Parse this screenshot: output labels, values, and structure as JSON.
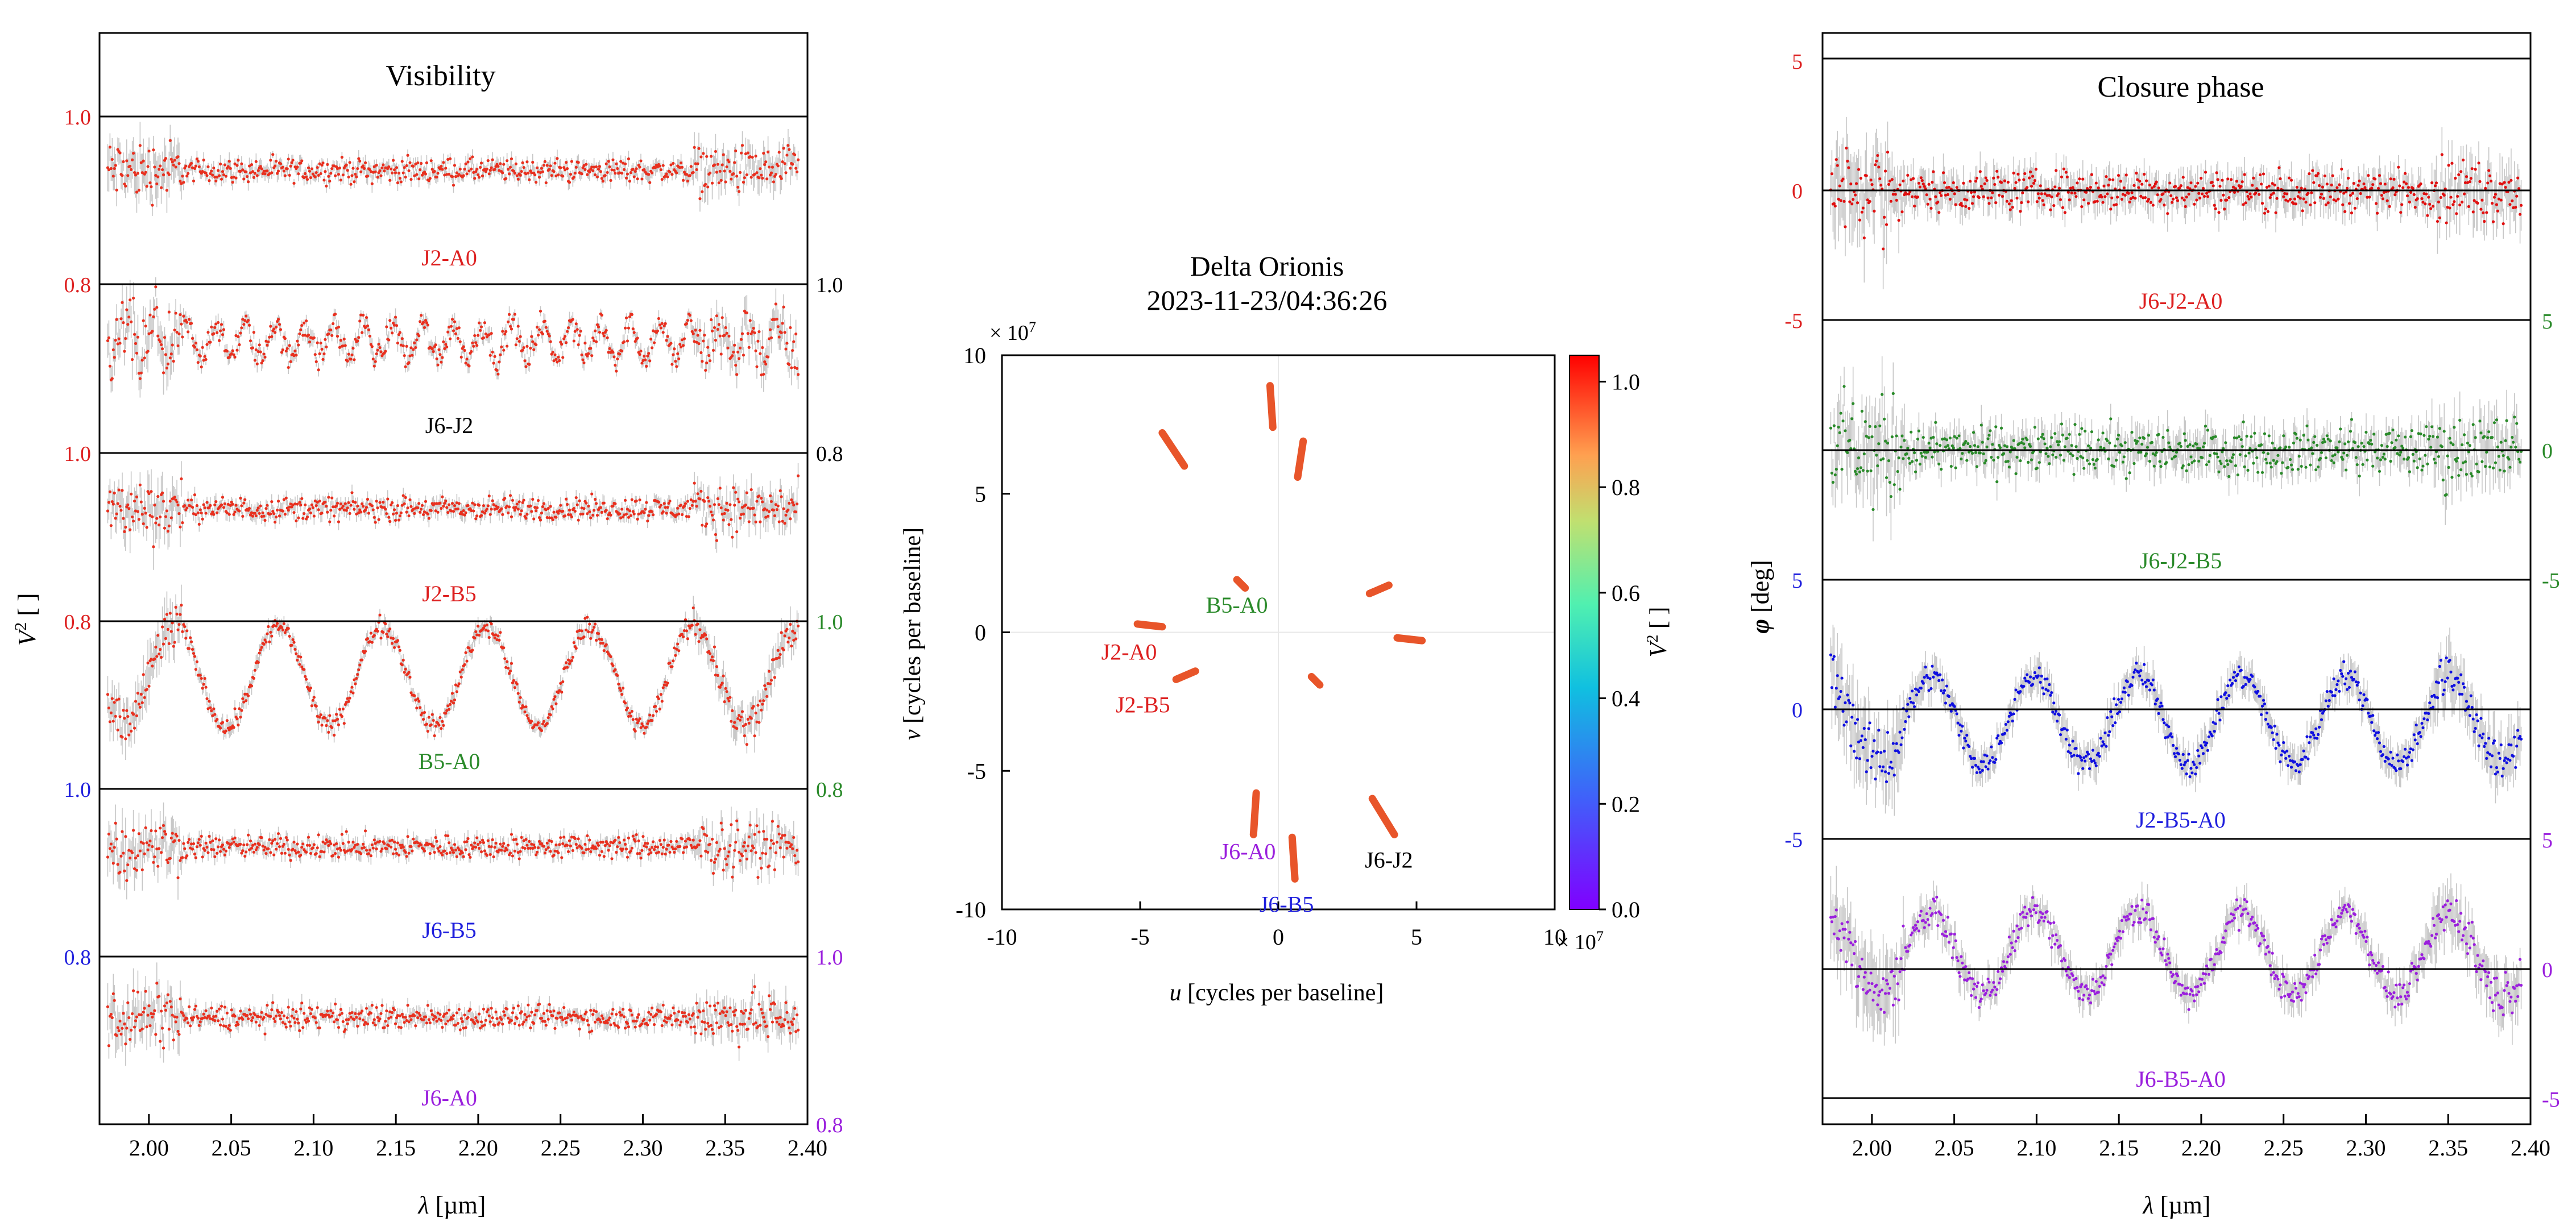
{
  "chart_data": [
    {
      "type": "scatter",
      "title": "Visibility",
      "xlabel_symbol": "λ",
      "xlabel_unit": "[µm]",
      "ylabel_symbol": "V",
      "ylabel_power": "2",
      "ylabel_unit": "[ ]",
      "xlim": [
        1.97,
        2.4
      ],
      "xticks": [
        "2.00",
        "2.05",
        "2.10",
        "2.15",
        "2.20",
        "2.25",
        "2.30",
        "2.35",
        "2.40"
      ],
      "xtick_values": [
        2.0,
        2.05,
        2.1,
        2.15,
        2.2,
        2.25,
        2.3,
        2.35,
        2.4
      ],
      "band_ylim": [
        0.8,
        1.0
      ],
      "panels": [
        {
          "name": "J2-A0",
          "color": "#dd1f1f",
          "ticks_left": [
            "1.0",
            "0.8"
          ],
          "ticks_right": [],
          "tick_color": "#dd1f1f",
          "right_color": "#000000",
          "mean": 0.94,
          "amp": 0.0,
          "period": 0.05,
          "noise": 0.012
        },
        {
          "name": "J6-J2",
          "color": "#000000",
          "ticks_left": [],
          "ticks_right": [
            "1.0",
            "0.8"
          ],
          "tick_color": "#dd1f1f",
          "right_color": "#000000",
          "mean": 0.92,
          "amp": 0.02,
          "period": 0.018,
          "noise": 0.014
        },
        {
          "name": "J2-B5",
          "color": "#dd1f1f",
          "ticks_left": [
            "1.0",
            "0.8"
          ],
          "ticks_right": [],
          "tick_color": "#dd1f1f",
          "right_color": "#000000",
          "mean": 0.93,
          "amp": 0.0,
          "period": 0.05,
          "noise": 0.012
        },
        {
          "name": "B5-A0",
          "color": "#2a8a2a",
          "ticks_left": [],
          "ticks_right": [
            "1.0",
            "0.8"
          ],
          "tick_color": "#dd1f1f",
          "right_color": "#2a8a2a",
          "mean": 0.88,
          "amp": 0.06,
          "period": 0.063,
          "noise": 0.01
        },
        {
          "name": "J6-B5",
          "color": "#1f1fdd",
          "ticks_left": [
            "1.0",
            "0.8"
          ],
          "ticks_right": [],
          "tick_color": "#1f1fdd",
          "right_color": "#2a8a2a",
          "mean": 0.86,
          "amp": 0.0,
          "period": 0.05,
          "noise": 0.012
        },
        {
          "name": "J6-A0",
          "color": "#9a1fdd",
          "ticks_left": [],
          "ticks_right": [
            "1.0",
            "0.8"
          ],
          "tick_color": "#1f1fdd",
          "right_color": "#9a1fdd",
          "mean": 0.88,
          "amp": 0.0,
          "period": 0.05,
          "noise": 0.012
        }
      ],
      "marker_color": "#e8301f"
    },
    {
      "type": "scatter",
      "title_line1": "Delta Orionis",
      "title_line2": "2023-11-23/04:36:26",
      "xlabel_symbol": "u",
      "xlabel_unit": "[cycles per baseline]",
      "ylabel_symbol": "v",
      "ylabel_unit": "[cycles per baseline]",
      "multiplier": "× 10",
      "multiplier_exp": "7",
      "xlim": [
        -10,
        10
      ],
      "ylim": [
        -10,
        10
      ],
      "xticks": [
        "-10",
        "-5",
        "0",
        "5",
        "10"
      ],
      "yticks": [
        "10",
        "5",
        "0",
        "-5",
        "-10"
      ],
      "tick_values_x": [
        -10,
        -5,
        0,
        5,
        10
      ],
      "tick_values_y": [
        10,
        5,
        0,
        -5,
        -10
      ],
      "colorbar_label_symbol": "V",
      "colorbar_label_power": "2",
      "colorbar_label_unit": "[ ]",
      "colorbar_ticks": [
        "1.0",
        "0.8",
        "0.6",
        "0.4",
        "0.2",
        "0.0"
      ],
      "colorbar_values": [
        1.0,
        0.8,
        0.6,
        0.4,
        0.2,
        0.0
      ],
      "colorbar_range": [
        0.0,
        1.05
      ],
      "baseline_labels": [
        {
          "name": "B5-A0",
          "color": "#2a8a2a",
          "u": -1.5,
          "v": 1.0
        },
        {
          "name": "J2-A0",
          "color": "#dd1f1f",
          "u": -5.4,
          "v": -0.7
        },
        {
          "name": "J2-B5",
          "color": "#dd1f1f",
          "u": -4.9,
          "v": -2.6
        },
        {
          "name": "J6-A0",
          "color": "#9a1fdd",
          "u": -1.1,
          "v": -7.9
        },
        {
          "name": "J6-J2",
          "color": "#000000",
          "u": 4.0,
          "v": -8.2
        },
        {
          "name": "J6-B5",
          "color": "#1f1fdd",
          "u": 0.3,
          "v": -9.8
        }
      ],
      "uv_tracks": [
        {
          "u1": -0.3,
          "v1": 8.9,
          "u2": -0.2,
          "v2": 7.4,
          "color": "#e8552a"
        },
        {
          "u1": 0.9,
          "v1": 6.9,
          "u2": 0.7,
          "v2": 5.6,
          "color": "#e8552a"
        },
        {
          "u1": -4.2,
          "v1": 7.2,
          "u2": -3.4,
          "v2": 6.0,
          "color": "#e8552a"
        },
        {
          "u1": -1.5,
          "v1": 1.9,
          "u2": -1.2,
          "v2": 1.6,
          "color": "#e8552a"
        },
        {
          "u1": 3.3,
          "v1": 1.4,
          "u2": 4.0,
          "v2": 1.7,
          "color": "#e8552a"
        },
        {
          "u1": 4.3,
          "v1": -0.2,
          "u2": 5.2,
          "v2": -0.3,
          "color": "#e8552a"
        },
        {
          "u1": -5.1,
          "v1": 0.3,
          "u2": -4.2,
          "v2": 0.2,
          "color": "#e8552a"
        },
        {
          "u1": -3.7,
          "v1": -1.7,
          "u2": -3.0,
          "v2": -1.4,
          "color": "#e8552a"
        },
        {
          "u1": 1.2,
          "v1": -1.6,
          "u2": 1.5,
          "v2": -1.9,
          "color": "#e8552a"
        },
        {
          "u1": -0.8,
          "v1": -5.8,
          "u2": -0.9,
          "v2": -7.3,
          "color": "#e8552a"
        },
        {
          "u1": 0.5,
          "v1": -7.4,
          "u2": 0.6,
          "v2": -8.9,
          "color": "#e8552a"
        },
        {
          "u1": 3.4,
          "v1": -6.0,
          "u2": 4.2,
          "v2": -7.3,
          "color": "#e8552a"
        }
      ]
    },
    {
      "type": "scatter",
      "title": "Closure phase",
      "xlabel_symbol": "λ",
      "xlabel_unit": "[µm]",
      "ylabel_symbol": "φ",
      "ylabel_unit": "[deg]",
      "xlim": [
        1.97,
        2.4
      ],
      "xticks": [
        "2.00",
        "2.05",
        "2.10",
        "2.15",
        "2.20",
        "2.25",
        "2.30",
        "2.35",
        "2.40"
      ],
      "xtick_values": [
        2.0,
        2.05,
        2.1,
        2.15,
        2.2,
        2.25,
        2.3,
        2.35,
        2.4
      ],
      "band_ylim": [
        -5,
        5
      ],
      "panels": [
        {
          "name": "J6-J2-A0",
          "color": "#dd1f1f",
          "marker": "#e01010",
          "ticks_left": [
            "5",
            "0",
            "-5"
          ],
          "ticks_right": [],
          "left_color": "#dd1f1f",
          "mean": 0.0,
          "amp": 0.0,
          "period": 0.05,
          "noise": 1.2
        },
        {
          "name": "J6-J2-B5",
          "color": "#2a8a2a",
          "marker": "#2a8a2a",
          "ticks_left": [],
          "ticks_right": [
            "5",
            "0",
            "-5"
          ],
          "left_color": "#2a8a2a",
          "mean": 0.0,
          "amp": 0.0,
          "period": 0.05,
          "noise": 1.4
        },
        {
          "name": "J2-B5-A0",
          "color": "#1f1fdd",
          "marker": "#1010e0",
          "ticks_left": [
            "5",
            "0",
            "-5"
          ],
          "ticks_right": [],
          "left_color": "#1f1fdd",
          "mean": -0.4,
          "amp": 1.7,
          "period": 0.063,
          "noise": 0.8
        },
        {
          "name": "J6-B5-A0",
          "color": "#9a1fdd",
          "marker": "#9a1fdd",
          "ticks_left": [],
          "ticks_right": [
            "5",
            "0",
            "-5"
          ],
          "left_color": "#9a1fdd",
          "mean": 0.6,
          "amp": 1.6,
          "period": 0.063,
          "noise": 0.8
        }
      ]
    }
  ]
}
